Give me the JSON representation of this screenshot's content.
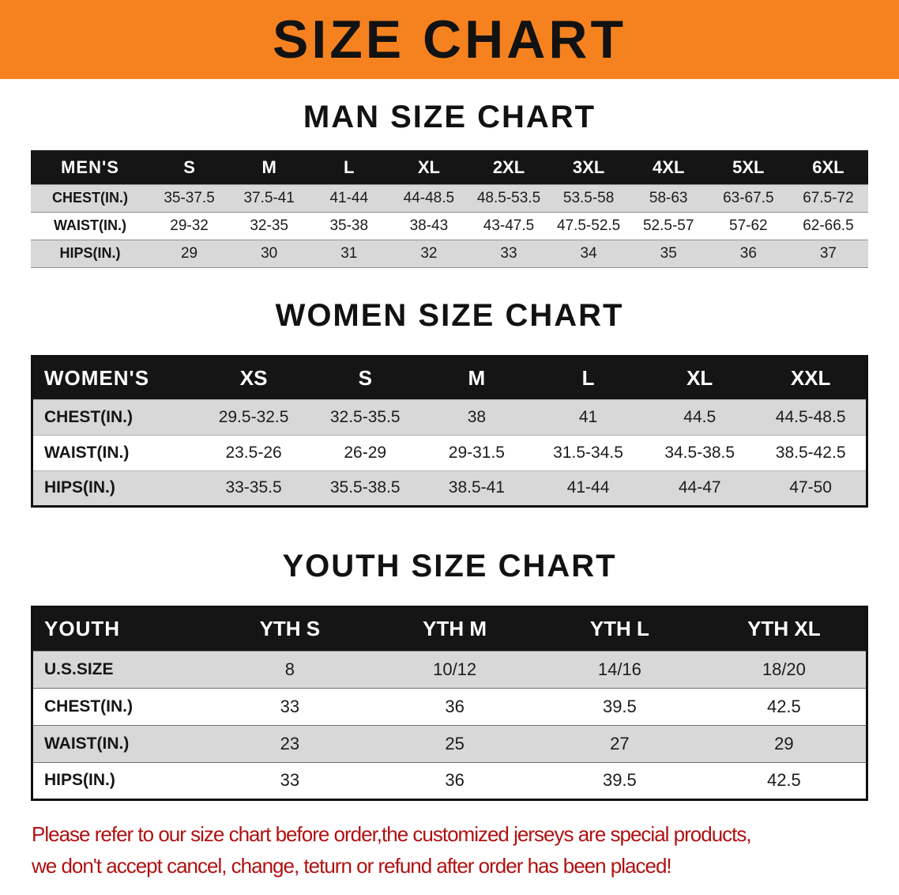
{
  "banner": {
    "title": "SIZE CHART",
    "bg_color": "#f5821f"
  },
  "sections": {
    "men": {
      "heading": "MAN SIZE CHART",
      "table": {
        "label": "MEN'S",
        "columns": [
          "S",
          "M",
          "L",
          "XL",
          "2XL",
          "3XL",
          "4XL",
          "5XL",
          "6XL"
        ],
        "rows": [
          {
            "label": "CHEST(IN.)",
            "values": [
              "35-37.5",
              "37.5-41",
              "41-44",
              "44-48.5",
              "48.5-53.5",
              "53.5-58",
              "58-63",
              "63-67.5",
              "67.5-72"
            ]
          },
          {
            "label": "WAIST(IN.)",
            "values": [
              "29-32",
              "32-35",
              "35-38",
              "38-43",
              "43-47.5",
              "47.5-52.5",
              "52.5-57",
              "57-62",
              "62-66.5"
            ]
          },
          {
            "label": "HIPS(IN.)",
            "values": [
              "29",
              "30",
              "31",
              "32",
              "33",
              "34",
              "35",
              "36",
              "37"
            ]
          }
        ]
      }
    },
    "women": {
      "heading": "WOMEN SIZE CHART",
      "table": {
        "label": "WOMEN'S",
        "columns": [
          "XS",
          "S",
          "M",
          "L",
          "XL",
          "XXL"
        ],
        "rows": [
          {
            "label": "CHEST(IN.)",
            "values": [
              "29.5-32.5",
              "32.5-35.5",
              "38",
              "41",
              "44.5",
              "44.5-48.5"
            ]
          },
          {
            "label": "WAIST(IN.)",
            "values": [
              "23.5-26",
              "26-29",
              "29-31.5",
              "31.5-34.5",
              "34.5-38.5",
              "38.5-42.5"
            ]
          },
          {
            "label": "HIPS(IN.)",
            "values": [
              "33-35.5",
              "35.5-38.5",
              "38.5-41",
              "41-44",
              "44-47",
              "47-50"
            ]
          }
        ]
      }
    },
    "youth": {
      "heading": "YOUTH SIZE CHART",
      "table": {
        "label": "YOUTH",
        "columns": [
          "YTH S",
          "YTH M",
          "YTH L",
          "YTH XL"
        ],
        "rows": [
          {
            "label": "U.S.SIZE",
            "values": [
              "8",
              "10/12",
              "14/16",
              "18/20"
            ]
          },
          {
            "label": "CHEST(IN.)",
            "values": [
              "33",
              "36",
              "39.5",
              "42.5"
            ]
          },
          {
            "label": "WAIST(IN.)",
            "values": [
              "23",
              "25",
              "27",
              "29"
            ]
          },
          {
            "label": "HIPS(IN.)",
            "values": [
              "33",
              "36",
              "39.5",
              "42.5"
            ]
          }
        ]
      }
    }
  },
  "disclaimer": {
    "line1": "Please refer to our size chart before order,the customized jerseys are special products,",
    "line2": "we don't accept cancel, change, teturn or refund after order has been placed!",
    "color": "#b01111"
  }
}
